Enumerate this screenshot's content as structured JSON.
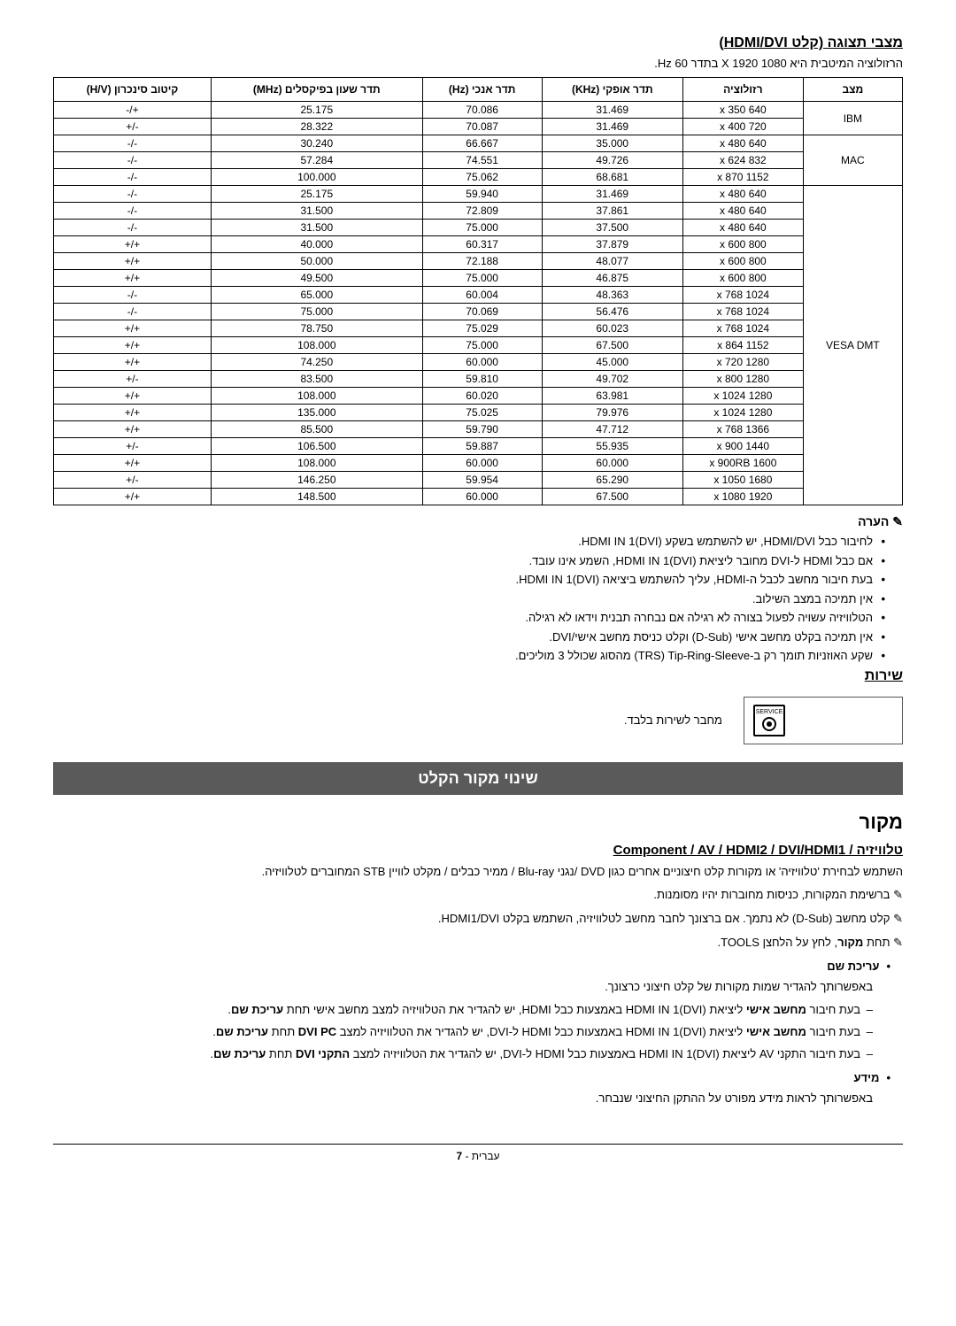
{
  "page": {
    "title": "מצבי תצוגה (קלט HDMI/DVI)",
    "resolution_note": "הרזולוציה המיטבית היא 1080 X 1920 בתדר 60 Hz.",
    "note_label": "הערה",
    "service_header": "שירות",
    "service_text": "מחבר לשירות בלבד.",
    "service_port_label": "SERVICE",
    "section_bar": "שינוי מקור הקלט",
    "source_header": "מקור",
    "path_line": "טלוויזיה / Component / AV / HDMI2 / DVI/HDMI1",
    "usage_para": "השתמש לבחירת 'טלוויזיה' או מקורות קלט חיצוניים אחרים כגון DVD /נגני Blu-ray / ממיר כבלים / מקלט לוויין STB המחוברים לטלוויזיה.",
    "pointer1": "ברשימת המקורות, כניסות מחוברות יהיו מסומנות.",
    "pointer2": "קלט מחשב (D-Sub) לא נתמך. אם ברצונך לחבר מחשב לטלוויזיה, השתמש בקלט HDMI1/DVI.",
    "pointer3": "תחת מקור, לחץ על הלחצן TOOLS.",
    "edit_name_head": "עריכת שם",
    "edit_name_text": "באפשרותך להגדיר שמות מקורות של קלט חיצוני כרצונך.",
    "edit_dashes": [
      "בעת חיבור מחשב אישי ליציאת HDMI IN 1(DVI) באמצעות כבל HDMI, יש להגדיר את הטלוויזיה למצב מחשב אישי תחת עריכת שם.",
      "בעת חיבור מחשב אישי ליציאת HDMI IN 1(DVI) באמצעות כבל HDMI ל-DVI, יש להגדיר את הטלוויזיה למצב DVI PC תחת עריכת שם.",
      "בעת חיבור התקני AV ליציאת HDMI IN 1(DVI) באמצעות כבל HDMI ל-DVI, יש להגדיר את הטלוויזיה למצב התקני DVI תחת עריכת שם."
    ],
    "info_head": "מידע",
    "info_text": "באפשרותך לראות מידע מפורט על ההתקן החיצוני שנבחר.",
    "page_footer": "עברית - 7"
  },
  "table": {
    "headers": [
      "מצב",
      "רזולוציה",
      "תדר אופקי (KHz)",
      "תדר אנכי (Hz)",
      "תדר שעון בפיקסלים (MHz)",
      "קיטוב סינכרון (H/V)"
    ],
    "groups": [
      {
        "label": "IBM",
        "rows": [
          [
            "640 x 350",
            "31.469",
            "70.086",
            "25.175",
            "+/-"
          ],
          [
            "720 x 400",
            "31.469",
            "70.087",
            "28.322",
            "-/+"
          ]
        ]
      },
      {
        "label": "MAC",
        "rows": [
          [
            "640 x 480",
            "35.000",
            "66.667",
            "30.240",
            "-/-"
          ],
          [
            "832 x 624",
            "49.726",
            "74.551",
            "57.284",
            "-/-"
          ],
          [
            "1152 x 870",
            "68.681",
            "75.062",
            "100.000",
            "-/-"
          ]
        ]
      },
      {
        "label": "VESA DMT",
        "rows": [
          [
            "640 x 480",
            "31.469",
            "59.940",
            "25.175",
            "-/-"
          ],
          [
            "640 x 480",
            "37.861",
            "72.809",
            "31.500",
            "-/-"
          ],
          [
            "640 x 480",
            "37.500",
            "75.000",
            "31.500",
            "-/-"
          ],
          [
            "800 x 600",
            "37.879",
            "60.317",
            "40.000",
            "+/+"
          ],
          [
            "800 x 600",
            "48.077",
            "72.188",
            "50.000",
            "+/+"
          ],
          [
            "800 x 600",
            "46.875",
            "75.000",
            "49.500",
            "+/+"
          ],
          [
            "1024 x 768",
            "48.363",
            "60.004",
            "65.000",
            "-/-"
          ],
          [
            "1024 x 768",
            "56.476",
            "70.069",
            "75.000",
            "-/-"
          ],
          [
            "1024 x 768",
            "60.023",
            "75.029",
            "78.750",
            "+/+"
          ],
          [
            "1152 x 864",
            "67.500",
            "75.000",
            "108.000",
            "+/+"
          ],
          [
            "1280 x 720",
            "45.000",
            "60.000",
            "74.250",
            "+/+"
          ],
          [
            "1280 x 800",
            "49.702",
            "59.810",
            "83.500",
            "-/+"
          ],
          [
            "1280 x 1024",
            "63.981",
            "60.020",
            "108.000",
            "+/+"
          ],
          [
            "1280 x 1024",
            "79.976",
            "75.025",
            "135.000",
            "+/+"
          ],
          [
            "1366 x 768",
            "47.712",
            "59.790",
            "85.500",
            "+/+"
          ],
          [
            "1440 x 900",
            "55.935",
            "59.887",
            "106.500",
            "-/+"
          ],
          [
            "1600 x 900RB",
            "60.000",
            "60.000",
            "108.000",
            "+/+"
          ],
          [
            "1680 x 1050",
            "65.290",
            "59.954",
            "146.250",
            "-/+"
          ],
          [
            "1920 x 1080",
            "67.500",
            "60.000",
            "148.500",
            "+/+"
          ]
        ]
      }
    ]
  },
  "notes": [
    "לחיבור כבל HDMI/DVI, יש להשתמש בשקע HDMI IN 1(DVI).",
    "אם כבל HDMI ל-DVI מחובר ליציאת HDMI IN 1(DVI), השמע אינו עובד.",
    "בעת חיבור מחשב לכבל ה-HDMI, עליך להשתמש ביציאה HDMI IN 1(DVI).",
    "אין תמיכה במצב השילוב.",
    "הטלוויזיה עשויה לפעול בצורה לא רגילה אם נבחרה תבנית וידאו לא רגילה.",
    "אין תמיכה בקלט מחשב אישי (D-Sub) וקלט כניסת מחשב אישי/DVI.",
    "שקע האוזניות תומך רק ב-TRS) Tip-Ring-Sleeve) מהסוג שכולל 3 מוליכים."
  ]
}
